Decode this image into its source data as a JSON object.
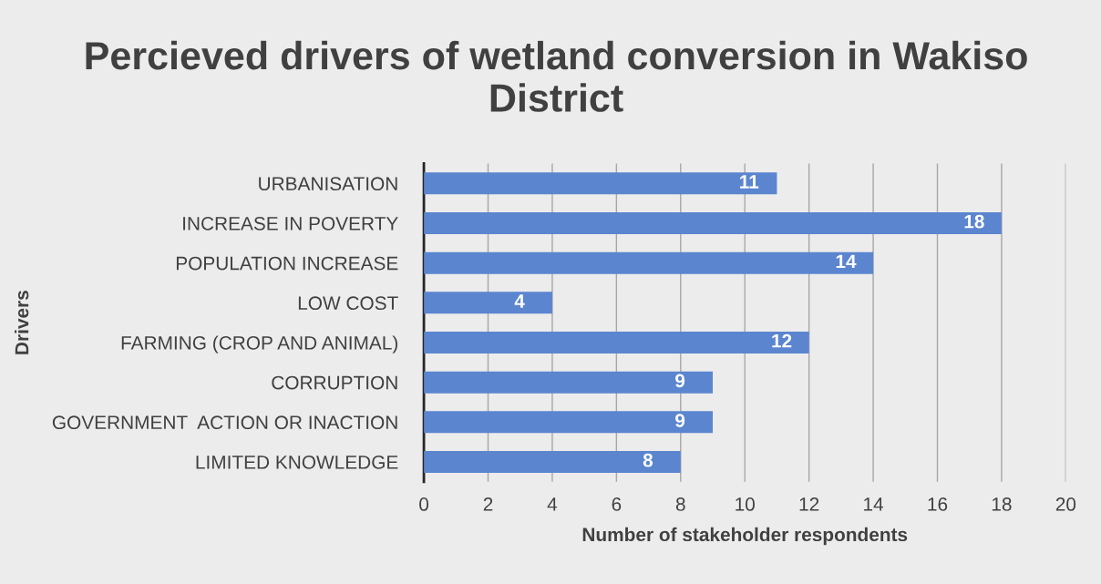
{
  "chart_data": {
    "type": "bar",
    "orientation": "horizontal",
    "title": "Percieved drivers of wetland conversion in Wakiso District",
    "xlabel": "Number of stakeholder respondents",
    "ylabel": "Drivers",
    "categories": [
      "URBANISATION",
      "INCREASE IN POVERTY",
      "POPULATION INCREASE",
      "LOW COST",
      "FARMING (CROP AND ANIMAL)",
      "CORRUPTION",
      "GOVERNMENT  ACTION OR INACTION",
      "LIMITED KNOWLEDGE"
    ],
    "values": [
      11,
      18,
      14,
      4,
      12,
      9,
      9,
      8
    ],
    "color": "#5b85cf",
    "xlim": [
      0,
      20
    ],
    "xticks": [
      0,
      2,
      4,
      6,
      8,
      10,
      12,
      14,
      16,
      18,
      20
    ],
    "grid": "x",
    "data_labels": true
  }
}
